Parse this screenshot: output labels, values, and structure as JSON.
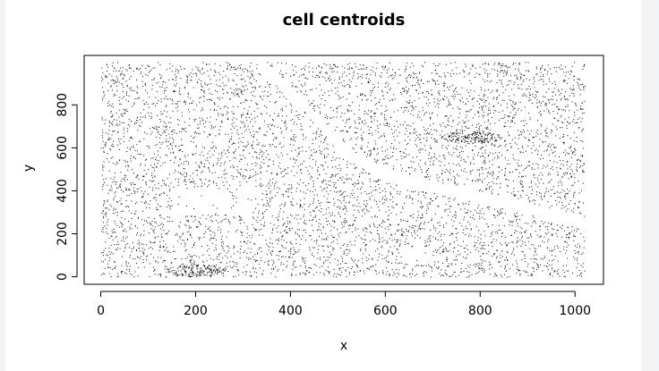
{
  "chart_data": {
    "type": "scatter",
    "title": "cell centroids",
    "xlabel": "x",
    "ylabel": "y",
    "xlim": [
      -35,
      1060
    ],
    "ylim": [
      -35,
      1030
    ],
    "x_ticks": [
      0,
      200,
      400,
      600,
      800,
      1000
    ],
    "y_ticks": [
      0,
      200,
      400,
      600,
      800
    ],
    "point_color": "#000000",
    "grid": false,
    "legend": "none",
    "x_range": [
      0,
      1020
    ],
    "y_range": [
      0,
      1000
    ],
    "approx_point_count": 6000,
    "features": {
      "diagonal_gap_band": [
        [
          335,
          1000
        ],
        [
          420,
          820
        ],
        [
          520,
          570
        ],
        [
          620,
          460
        ],
        [
          760,
          390
        ],
        [
          900,
          320
        ],
        [
          1020,
          250
        ]
      ],
      "empty_regions": [
        {
          "x": [
            150,
            330
          ],
          "y": [
            290,
            420
          ]
        },
        {
          "x": [
            640,
            700
          ],
          "y": [
            60,
            140
          ]
        }
      ],
      "dense_clusters": [
        {
          "x": 780,
          "y": 650
        },
        {
          "x": 200,
          "y": 30
        }
      ]
    }
  }
}
